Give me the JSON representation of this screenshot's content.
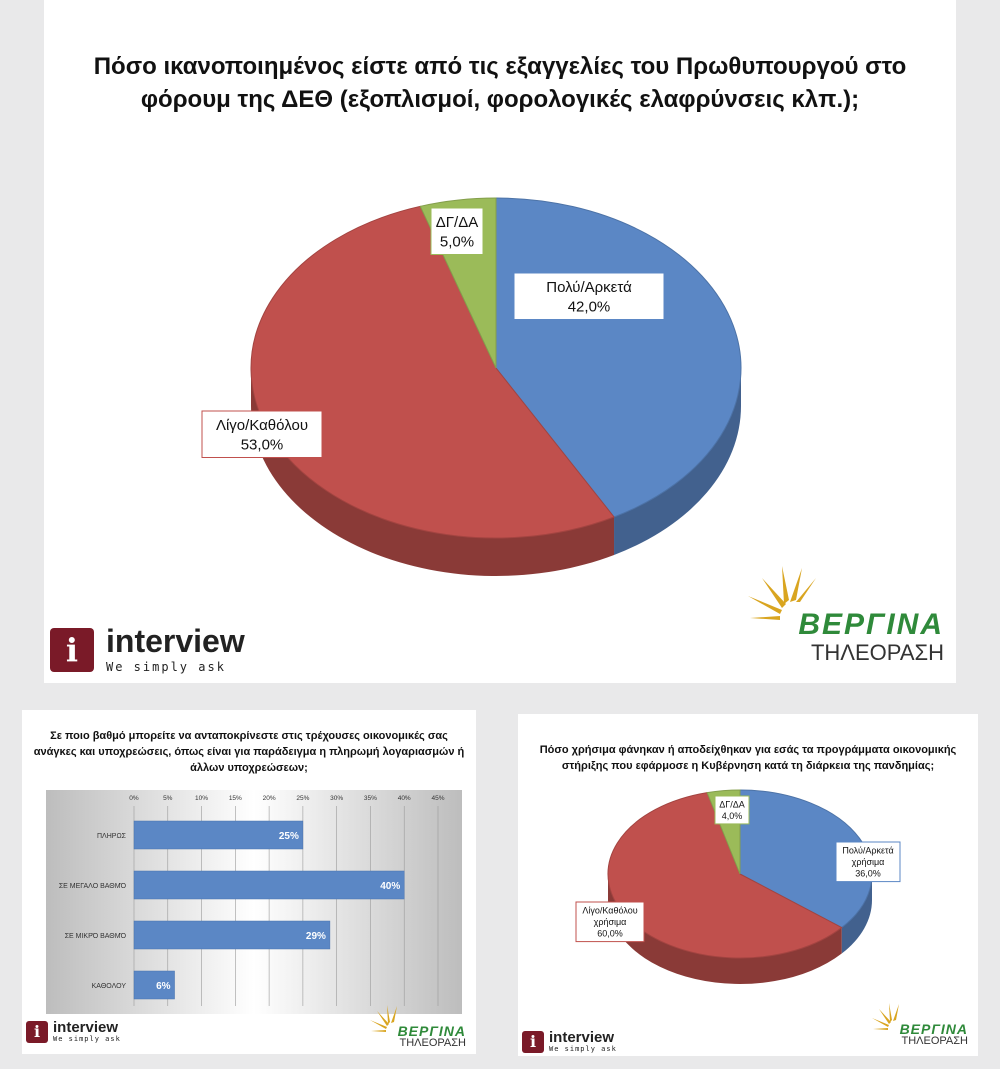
{
  "colors": {
    "blue": "#5b87c5",
    "red": "#c0504d",
    "green": "#9bbb59",
    "bar": "#5b87c5"
  },
  "logos": {
    "interview": {
      "icon": "i",
      "word": "interview",
      "tagline": "We simply ask"
    },
    "vergina": {
      "name": "ΒΕΡΓΙΝΑ",
      "tv": "ΤΗΛΕΟΡΑΣΗ"
    }
  },
  "chart_data": [
    {
      "type": "pie",
      "title": "Πόσο ικανοποιημένος είστε από τις εξαγγελίες του Πρωθυπουργού στο φόρουμ της ΔΕΘ (εξοπλισμοί, φορολογικές ελαφρύνσεις κλπ.);",
      "slices": [
        {
          "label": "Πολύ/Αρκετά",
          "value": 42.0,
          "display": "42,0%",
          "color": "#5b87c5"
        },
        {
          "label": "Λίγο/Καθόλου",
          "value": 53.0,
          "display": "53,0%",
          "color": "#c0504d"
        },
        {
          "label": "ΔΓ/ΔΑ",
          "value": 5.0,
          "display": "5,0%",
          "color": "#9bbb59"
        }
      ]
    },
    {
      "type": "bar",
      "orientation": "horizontal",
      "title": "Σε ποιο βαθμό μπορείτε να ανταποκρίνεστε στις τρέχουσες οικονομικές σας ανάγκες και υποχρεώσεις, όπως είναι για παράδειγμα η πληρωμή λογαριασμών ή άλλων υποχρεώσεων;",
      "categories": [
        "ΠΛΗΡΩΣ",
        "ΣΕ ΜΕΓΑΛΟ ΒΑΘΜΌ",
        "ΣΕ ΜΙΚΡΌ ΒΑΘΜΌ",
        "ΚΑΘΟΛΟΥ"
      ],
      "values": [
        25,
        40,
        29,
        6
      ],
      "value_labels": [
        "25%",
        "40%",
        "29%",
        "6%"
      ],
      "xlim": [
        0,
        45
      ],
      "ticks": [
        0,
        5,
        10,
        15,
        20,
        25,
        30,
        35,
        40,
        45
      ],
      "tick_labels": [
        "0%",
        "5%",
        "10%",
        "15%",
        "20%",
        "25%",
        "30%",
        "35%",
        "40%",
        "45%"
      ],
      "grid": true
    },
    {
      "type": "pie",
      "title": "Πόσο χρήσιμα φάνηκαν ή αποδείχθηκαν για εσάς τα προγράμματα οικονομικής στήριξης που εφάρμοσε η Κυβέρνηση κατά τη διάρκεια της πανδημίας;",
      "slices": [
        {
          "label": "Πολύ/Αρκετά χρήσιμα",
          "value": 36.0,
          "display": "36,0%",
          "color": "#5b87c5"
        },
        {
          "label": "Λίγο/Καθόλου χρήσιμα",
          "value": 60.0,
          "display": "60,0%",
          "color": "#c0504d"
        },
        {
          "label": "ΔΓ/ΔΑ",
          "value": 4.0,
          "display": "4,0%",
          "color": "#9bbb59"
        }
      ]
    }
  ]
}
